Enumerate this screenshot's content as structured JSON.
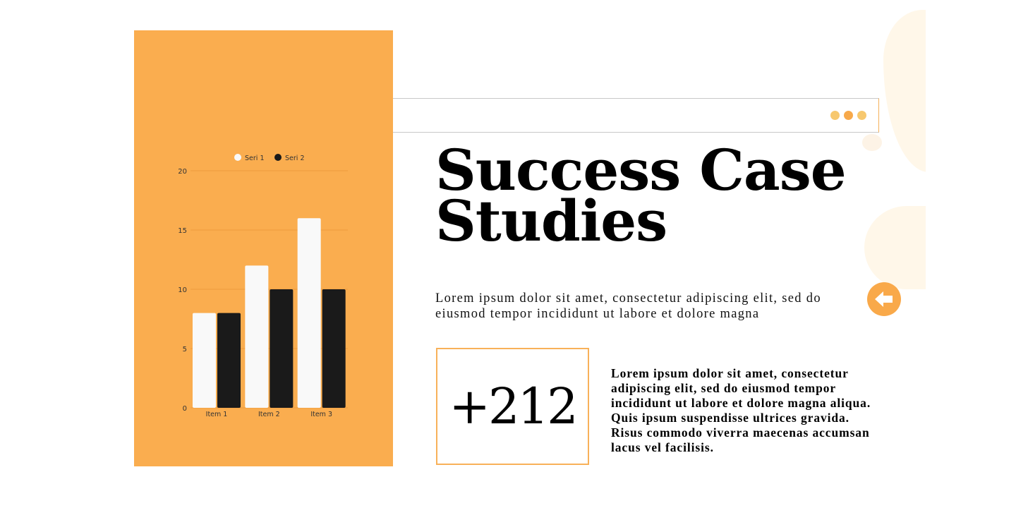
{
  "title": "Success Case Studies",
  "subtitle": "Lorem ipsum dolor sit amet, consectetur adipiscing elit, sed do eiusmod tempor incididunt ut labore et dolore magna",
  "stat": "+212",
  "body": "Lorem ipsum dolor sit amet, consectetur adipiscing elit, sed do eiusmod tempor incididunt ut labore et dolore magna aliqua. Quis ipsum suspendisse ultrices gravida. Risus commodo viverra maecenas accumsan lacus vel facilisis.",
  "icons": {
    "menu": "three-dots-icon",
    "back": "arrow-left-icon"
  },
  "colors": {
    "accent": "#faad4f",
    "dots": [
      "#f7c86e",
      "#f7a94a",
      "#f7c86e"
    ]
  },
  "chart_data": {
    "type": "bar",
    "categories": [
      "Item 1",
      "Item 2",
      "Item 3"
    ],
    "series": [
      {
        "name": "Seri 1",
        "values": [
          8,
          12,
          16
        ],
        "color": "#f9f9f9"
      },
      {
        "name": "Seri 2",
        "values": [
          8,
          10,
          10
        ],
        "color": "#1a1a1a"
      }
    ],
    "ylim": [
      0,
      20
    ],
    "yticks": [
      0,
      5,
      10,
      15,
      20
    ],
    "grid": true,
    "legend": "top"
  }
}
